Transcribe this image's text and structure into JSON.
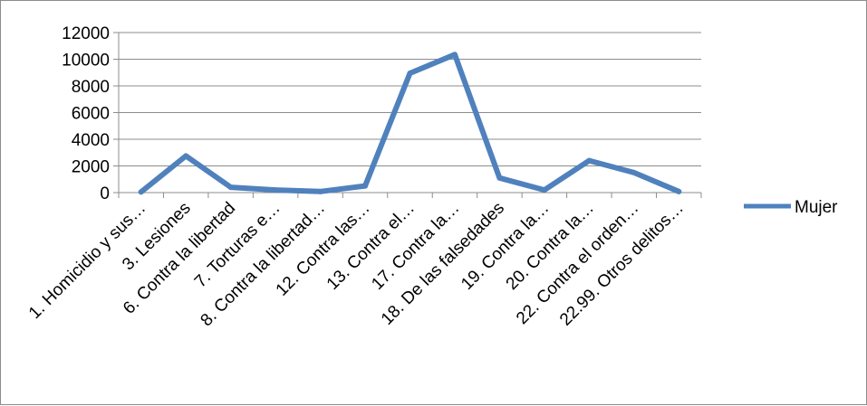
{
  "chart_data": {
    "type": "line",
    "title": "",
    "xlabel": "",
    "ylabel": "",
    "ylim": [
      0,
      12000
    ],
    "yticks": [
      0,
      2000,
      4000,
      6000,
      8000,
      10000,
      12000
    ],
    "grid": true,
    "legend_position": "right",
    "categories": [
      "1. Homicidio y sus…",
      "3. Lesiones",
      "6. Contra la libertad",
      "7. Torturas e…",
      "8. Contra la libertad…",
      "12. Contra las…",
      "13. Contra el…",
      "17. Contra la…",
      "18. De las falsedades",
      "19. Contra la…",
      "20. Contra la…",
      "22. Contra el orden…",
      "22.99. Otros delitos…"
    ],
    "series": [
      {
        "name": "Mujer",
        "color": "#4f81bd",
        "values": [
          50,
          2750,
          400,
          200,
          80,
          500,
          8950,
          10350,
          1100,
          200,
          2400,
          1500,
          80
        ]
      }
    ]
  }
}
